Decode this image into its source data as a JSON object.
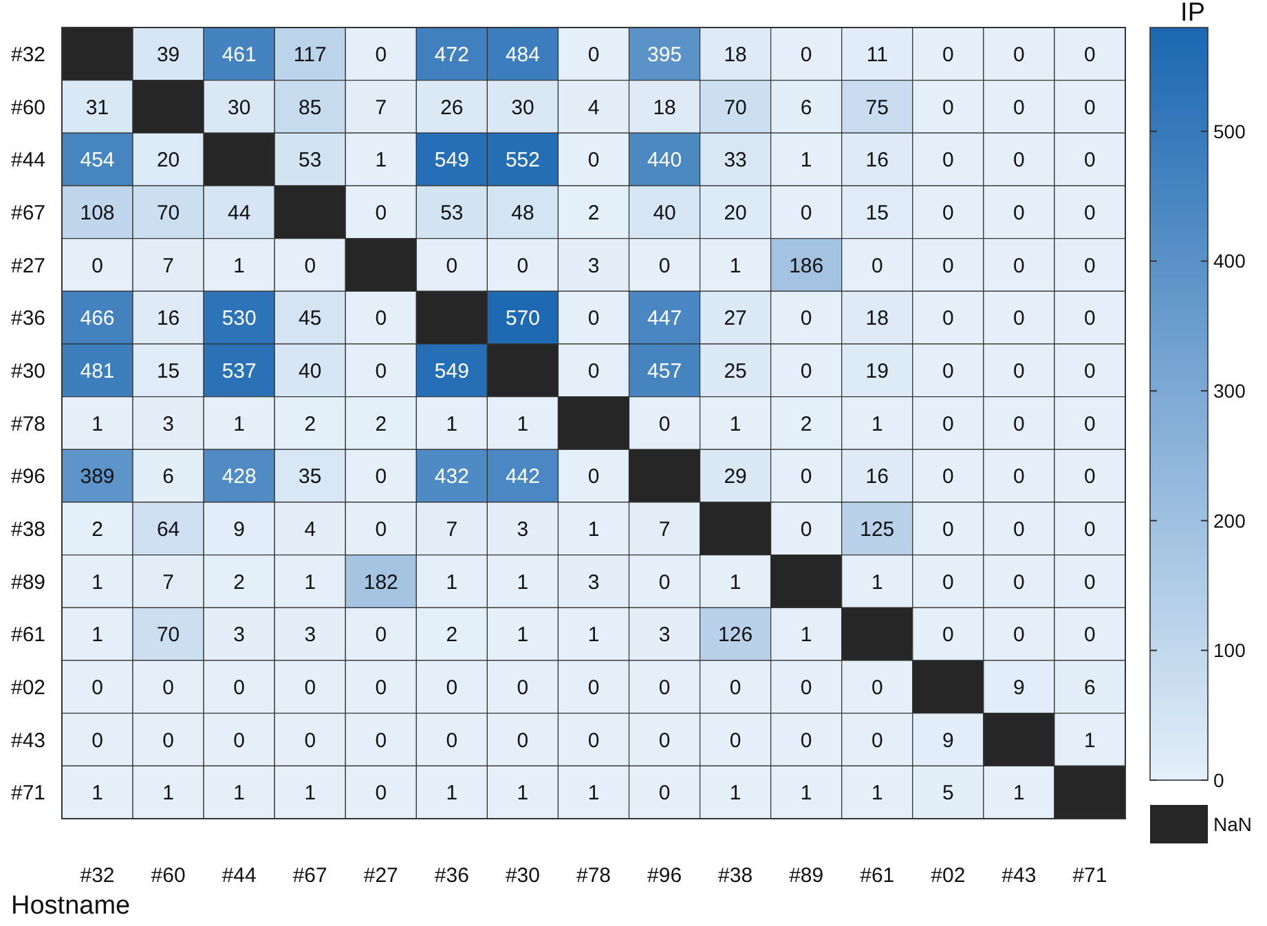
{
  "chart_data": {
    "type": "heatmap",
    "xlabel": "Hostname",
    "clabel": "IP",
    "categories": [
      "#32",
      "#60",
      "#44",
      "#67",
      "#27",
      "#36",
      "#30",
      "#78",
      "#96",
      "#38",
      "#89",
      "#61",
      "#02",
      "#43",
      "#71"
    ],
    "y_categories": [
      "#32",
      "#60",
      "#44",
      "#67",
      "#27",
      "#36",
      "#30",
      "#78",
      "#96",
      "#38",
      "#89",
      "#61",
      "#02",
      "#43",
      "#71"
    ],
    "cells": [
      [
        null,
        39,
        461,
        117,
        0,
        472,
        484,
        0,
        395,
        18,
        0,
        11,
        0,
        0,
        0
      ],
      [
        31,
        null,
        30,
        85,
        7,
        26,
        30,
        4,
        18,
        70,
        6,
        75,
        0,
        0,
        0
      ],
      [
        454,
        20,
        null,
        53,
        1,
        549,
        552,
        0,
        440,
        33,
        1,
        16,
        0,
        0,
        0
      ],
      [
        108,
        70,
        44,
        null,
        0,
        53,
        48,
        2,
        40,
        20,
        0,
        15,
        0,
        0,
        0
      ],
      [
        0,
        7,
        1,
        0,
        null,
        0,
        0,
        3,
        0,
        1,
        186,
        0,
        0,
        0,
        0
      ],
      [
        466,
        16,
        530,
        45,
        0,
        null,
        570,
        0,
        447,
        27,
        0,
        18,
        0,
        0,
        0
      ],
      [
        481,
        15,
        537,
        40,
        0,
        549,
        null,
        0,
        457,
        25,
        0,
        19,
        0,
        0,
        0
      ],
      [
        1,
        3,
        1,
        2,
        2,
        1,
        1,
        null,
        0,
        1,
        2,
        1,
        0,
        0,
        0
      ],
      [
        389,
        6,
        428,
        35,
        0,
        432,
        442,
        0,
        null,
        29,
        0,
        16,
        0,
        0,
        0
      ],
      [
        2,
        64,
        9,
        4,
        0,
        7,
        3,
        1,
        7,
        null,
        0,
        125,
        0,
        0,
        0
      ],
      [
        1,
        7,
        2,
        1,
        182,
        1,
        1,
        3,
        0,
        1,
        null,
        1,
        0,
        0,
        0
      ],
      [
        1,
        70,
        3,
        3,
        0,
        2,
        1,
        1,
        3,
        126,
        1,
        null,
        0,
        0,
        0
      ],
      [
        0,
        0,
        0,
        0,
        0,
        0,
        0,
        0,
        0,
        0,
        0,
        0,
        null,
        9,
        6
      ],
      [
        0,
        0,
        0,
        0,
        0,
        0,
        0,
        0,
        0,
        0,
        0,
        0,
        9,
        null,
        1
      ],
      [
        1,
        1,
        1,
        1,
        0,
        1,
        1,
        1,
        0,
        1,
        1,
        1,
        5,
        1,
        null
      ]
    ],
    "data_labels": true,
    "clim": [
      0,
      580
    ],
    "cticks": [
      0,
      100,
      200,
      300,
      400,
      500
    ],
    "annotations": [
      "NaN"
    ]
  }
}
